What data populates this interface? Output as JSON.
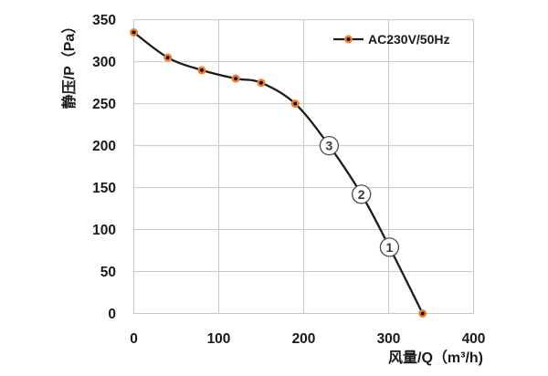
{
  "chart_data": {
    "type": "line",
    "title": "",
    "xlabel": "风量/Q（m³/h)",
    "ylabel": "静压/P（Pa）",
    "xlim": [
      0,
      400
    ],
    "ylim": [
      0,
      350
    ],
    "xticks": [
      "0",
      "100",
      "200",
      "300",
      "400"
    ],
    "yticks": [
      "0",
      "50",
      "100",
      "150",
      "200",
      "250",
      "300",
      "350"
    ],
    "grid": true,
    "legend_position": "top-right-inside",
    "series": [
      {
        "name": "AC230V/50Hz",
        "points": [
          [
            0,
            335
          ],
          [
            40,
            305
          ],
          [
            80,
            290
          ],
          [
            120,
            280
          ],
          [
            150,
            275
          ],
          [
            190,
            250
          ],
          [
            340,
            0
          ]
        ],
        "line_color": "#1c1c1c",
        "marker_fill": "#000000",
        "marker_ring": "#ED7D31"
      }
    ],
    "annotations": [
      {
        "text": "3",
        "x": 230,
        "y": 200
      },
      {
        "text": "2",
        "x": 268,
        "y": 142
      },
      {
        "text": "1",
        "x": 301,
        "y": 79
      }
    ],
    "colors": {
      "grid": "#c8c8c8",
      "text": "#1a1a1a",
      "annotation_circle": "#4a4a4a",
      "background": "#ffffff"
    }
  }
}
